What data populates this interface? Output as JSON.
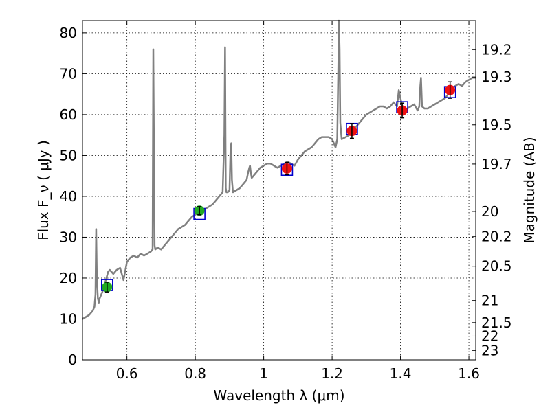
{
  "chart_data": {
    "type": "line",
    "title": "",
    "xlabel": "Wavelength  λ (μm)",
    "ylabel": "Flux  F_ν  ( μJy )",
    "ylabel_right": "Magnitude (AB)",
    "xlim": [
      0.47,
      1.62
    ],
    "ylim": [
      0,
      83
    ],
    "grid": true,
    "x_ticks": [
      0.6,
      0.8,
      1.0,
      1.2,
      1.4,
      1.6
    ],
    "x_tick_labels": [
      "0.6",
      "0.8",
      "1",
      "1.2",
      "1.4",
      "1.6"
    ],
    "y_ticks": [
      0,
      10,
      20,
      30,
      40,
      50,
      60,
      70,
      80
    ],
    "y_tick_labels": [
      "0",
      "10",
      "20",
      "30",
      "40",
      "50",
      "60",
      "70",
      "80"
    ],
    "right_ticks": [
      {
        "label": "19.2",
        "flux": 75.9
      },
      {
        "label": "19.3",
        "flux": 69.2
      },
      {
        "label": "19.5",
        "flux": 57.5
      },
      {
        "label": "19.7",
        "flux": 47.9
      },
      {
        "label": "20",
        "flux": 36.3
      },
      {
        "label": "20.2",
        "flux": 30.2
      },
      {
        "label": "20.5",
        "flux": 22.9
      },
      {
        "label": "21",
        "flux": 14.5
      },
      {
        "label": "21.5",
        "flux": 9.1
      },
      {
        "label": "22",
        "flux": 5.8
      },
      {
        "label": "23",
        "flux": 2.3
      }
    ],
    "series": [
      {
        "kind": "spectrum",
        "color": "#808080",
        "x": [
          0.47,
          0.48,
          0.49,
          0.5,
          0.505,
          0.508,
          0.51,
          0.512,
          0.515,
          0.518,
          0.52,
          0.525,
          0.53,
          0.535,
          0.54,
          0.545,
          0.55,
          0.555,
          0.56,
          0.57,
          0.58,
          0.585,
          0.59,
          0.6,
          0.61,
          0.62,
          0.63,
          0.64,
          0.65,
          0.66,
          0.67,
          0.675,
          0.677,
          0.679,
          0.681,
          0.683,
          0.69,
          0.7,
          0.71,
          0.72,
          0.73,
          0.74,
          0.75,
          0.76,
          0.77,
          0.78,
          0.79,
          0.8,
          0.81,
          0.82,
          0.83,
          0.84,
          0.85,
          0.86,
          0.87,
          0.88,
          0.885,
          0.887,
          0.889,
          0.891,
          0.895,
          0.9,
          0.903,
          0.905,
          0.907,
          0.91,
          0.92,
          0.93,
          0.94,
          0.95,
          0.955,
          0.958,
          0.96,
          0.962,
          0.965,
          0.97,
          0.98,
          0.99,
          1.0,
          1.01,
          1.02,
          1.03,
          1.04,
          1.05,
          1.06,
          1.07,
          1.08,
          1.09,
          1.1,
          1.11,
          1.12,
          1.13,
          1.14,
          1.15,
          1.16,
          1.17,
          1.18,
          1.19,
          1.2,
          1.21,
          1.215,
          1.218,
          1.22,
          1.222,
          1.224,
          1.228,
          1.24,
          1.25,
          1.26,
          1.27,
          1.28,
          1.29,
          1.3,
          1.31,
          1.32,
          1.33,
          1.34,
          1.35,
          1.36,
          1.37,
          1.38,
          1.39,
          1.395,
          1.4,
          1.405,
          1.41,
          1.42,
          1.43,
          1.44,
          1.45,
          1.455,
          1.458,
          1.46,
          1.463,
          1.47,
          1.48,
          1.49,
          1.5,
          1.51,
          1.52,
          1.53,
          1.54,
          1.55,
          1.56,
          1.57,
          1.58,
          1.59,
          1.6,
          1.61,
          1.62
        ],
        "y": [
          10.0,
          10.5,
          11.0,
          12.0,
          13.0,
          16.0,
          32.0,
          20.0,
          15.0,
          14.0,
          15.0,
          16.0,
          17.0,
          18.5,
          20.0,
          21.5,
          22.0,
          21.5,
          21.0,
          22.0,
          22.5,
          21.0,
          19.5,
          24.0,
          25.0,
          25.5,
          25.0,
          26.0,
          25.5,
          26.0,
          26.5,
          27.0,
          76.0,
          50.0,
          28.0,
          27.0,
          27.5,
          27.0,
          28.0,
          29.0,
          30.0,
          31.0,
          32.0,
          32.5,
          33.0,
          34.0,
          35.0,
          35.5,
          36.0,
          36.5,
          37.0,
          37.5,
          38.0,
          39.0,
          40.0,
          41.0,
          55.0,
          76.5,
          42.0,
          41.0,
          41.0,
          41.5,
          52.0,
          53.0,
          44.0,
          41.0,
          41.5,
          42.0,
          43.0,
          44.0,
          46.0,
          47.0,
          47.5,
          46.0,
          44.5,
          45.0,
          46.0,
          47.0,
          47.5,
          48.0,
          48.0,
          47.5,
          47.0,
          47.5,
          48.0,
          48.5,
          48.0,
          47.5,
          49.0,
          50.0,
          51.0,
          51.5,
          52.0,
          53.0,
          54.0,
          54.5,
          54.5,
          54.5,
          54.0,
          52.0,
          54.0,
          70.0,
          83.0,
          76.0,
          58.0,
          54.0,
          54.5,
          55.0,
          56.0,
          57.0,
          58.0,
          59.0,
          60.0,
          60.5,
          61.0,
          61.5,
          62.0,
          62.0,
          61.5,
          62.0,
          63.0,
          62.0,
          66.0,
          64.0,
          62.0,
          61.0,
          61.5,
          62.0,
          62.5,
          61.0,
          62.0,
          67.0,
          69.0,
          62.0,
          61.5,
          61.5,
          62.0,
          62.5,
          63.0,
          63.5,
          64.0,
          65.0,
          66.0,
          67.0,
          67.5,
          67.0,
          68.0,
          68.5,
          69.0,
          69.0
        ]
      },
      {
        "kind": "model-photometry",
        "marker": "square-open",
        "color": "#0000cc",
        "x": [
          0.542,
          0.812,
          1.068,
          1.258,
          1.405,
          1.545
        ],
        "y": [
          18.3,
          35.7,
          46.5,
          56.5,
          61.8,
          65.5
        ]
      },
      {
        "kind": "photometry-optical",
        "marker": "circle",
        "color": "#22aa22",
        "x": [
          0.542,
          0.812
        ],
        "y": [
          17.8,
          36.5
        ],
        "err": [
          1.2,
          1.0
        ]
      },
      {
        "kind": "photometry-nir",
        "marker": "circle",
        "color": "#ee1111",
        "x": [
          1.068,
          1.258,
          1.405,
          1.545
        ],
        "y": [
          46.8,
          56.0,
          61.0,
          66.0
        ],
        "err": [
          1.5,
          1.8,
          1.8,
          2.0
        ]
      }
    ]
  }
}
